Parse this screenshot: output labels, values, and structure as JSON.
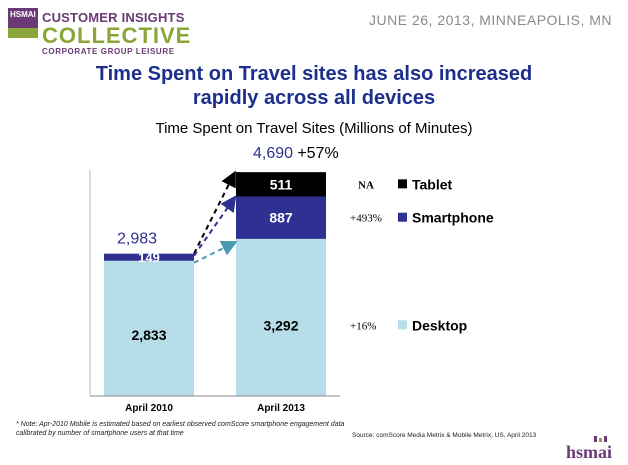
{
  "header": {
    "logo": {
      "mark_text": "HSMAI",
      "line1": "CUSTOMER INSIGHTS",
      "line2": "COLLECTIVE",
      "line3": "CORPORATE GROUP LEISURE"
    },
    "event": "JUNE 26, 2013, MINNEAPOLIS, MN"
  },
  "slide_title": [
    "Time Spent on Travel sites has also increased",
    "rapidly across all devices"
  ],
  "chart_data": {
    "type": "bar",
    "stacked": true,
    "title": "Time Spent on Travel Sites (Millions of Minutes)",
    "categories": [
      "April 2010",
      "April 2013"
    ],
    "series": [
      {
        "name": "Desktop",
        "values": [
          2833,
          3292
        ],
        "color": "#b7dde8"
      },
      {
        "name": "Smartphone",
        "values": [
          149,
          887
        ],
        "color": "#2e3192"
      },
      {
        "name": "Tablet",
        "values": [
          0,
          511
        ],
        "color": "#000000"
      }
    ],
    "data_labels": [
      [
        "2,833",
        "149",
        null
      ],
      [
        "3,292",
        "887",
        "511"
      ]
    ],
    "totals": [
      "2,983",
      "4,690"
    ],
    "total_growth": "+57%",
    "growth_labels": [
      "+16%",
      "+493%",
      "NA"
    ],
    "ylim": [
      0,
      5000
    ],
    "legend_position": "right",
    "grid": false
  },
  "note": "* Note: Apr-2010 Mobile is estimated based on earliest observed comScore smartphone engagement data calibrated by number of smartphone users at that time",
  "source": "Source: comScore Media Metrix & Mobile Metrix, US, April 2013",
  "footer_logo": "hsmai",
  "colors": {
    "title": "#1c2f8c",
    "total_label": "#2e3192",
    "arrow_blue": "#2e3192",
    "arrow_teal": "#4a9ab0"
  }
}
